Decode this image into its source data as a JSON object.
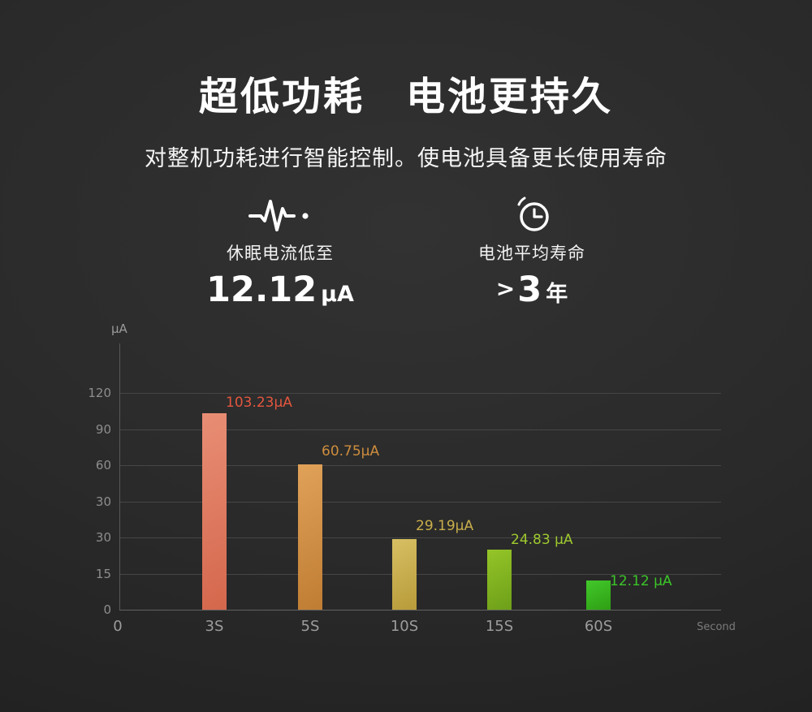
{
  "header": {
    "title": "超低功耗　电池更持久",
    "subtitle": "对整机功耗进行智能控制。使电池具备更长使用寿命"
  },
  "features": [
    {
      "icon": "pulse-waveform-icon",
      "label": "休眠电流低至",
      "value": "12.12",
      "unit": "μA"
    },
    {
      "icon": "alarm-clock-icon",
      "label": "电池平均寿命",
      "prefix": ">",
      "value": "3",
      "unit": "年"
    }
  ],
  "chart_data": {
    "type": "bar",
    "title": "",
    "y_axis_label": "μA",
    "x_axis_label": "Second",
    "x_origin_label": "0",
    "categories": [
      "3S",
      "5S",
      "10S",
      "15S",
      "60S"
    ],
    "values": [
      103.23,
      60.75,
      29.19,
      24.83,
      12.12
    ],
    "value_labels": [
      "103.23μA",
      "60.75μA",
      "29.19μA",
      "24.83 μA",
      "12.12 μA"
    ],
    "y_ticks_top_to_bottom": [
      "120",
      "90",
      "60",
      "30",
      "30",
      "15",
      "0"
    ],
    "grid": true,
    "legend": false,
    "bar_colors": [
      {
        "light": "#e88e75",
        "dark": "#d4674c"
      },
      {
        "light": "#e0a159",
        "dark": "#bf7d33"
      },
      {
        "light": "#d7bf63",
        "dark": "#b89b3a"
      },
      {
        "light": "#95c528",
        "dark": "#6d9f19"
      },
      {
        "light": "#42c82b",
        "dark": "#2e9f13"
      }
    ],
    "label_colors": [
      "#e3563e",
      "#cd8d3d",
      "#c9ae4b",
      "#9fca2e",
      "#3bc628"
    ]
  }
}
